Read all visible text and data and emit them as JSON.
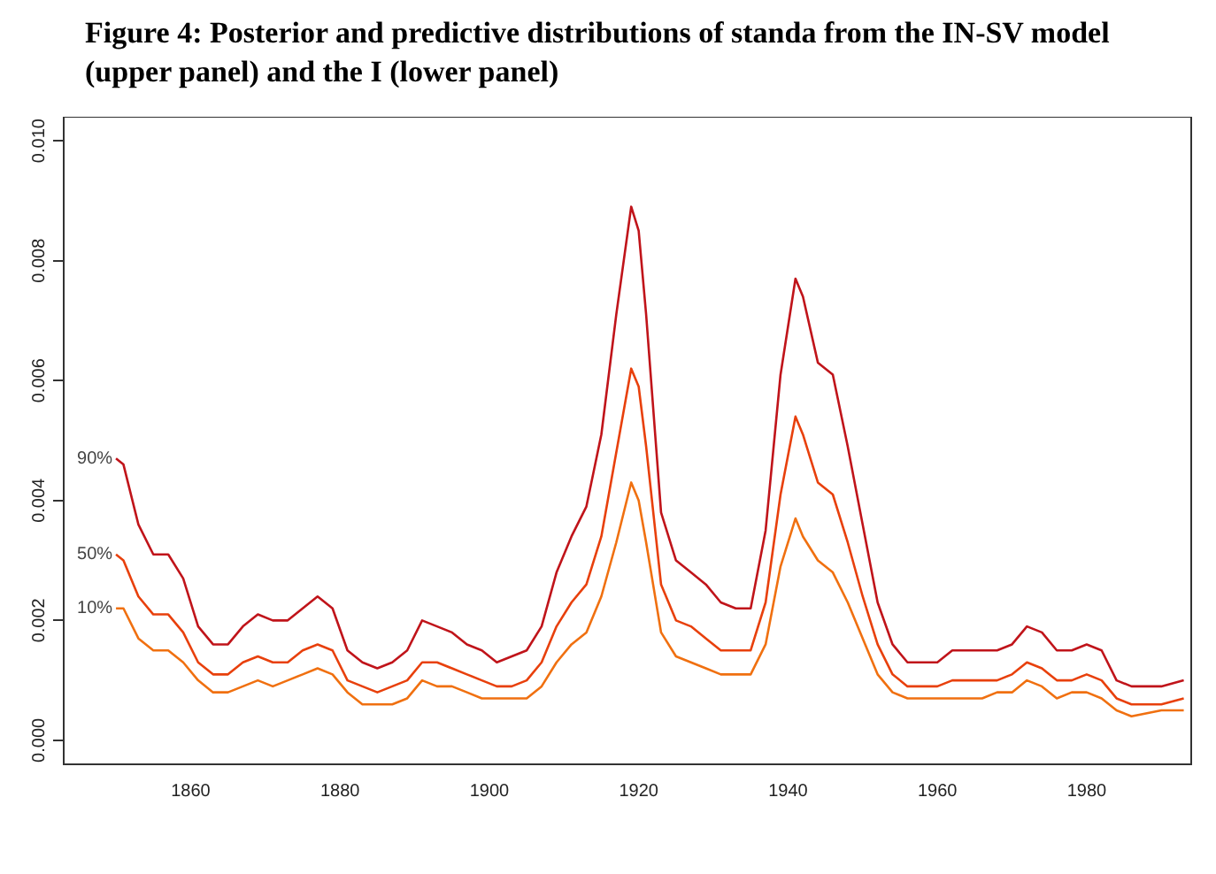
{
  "chart_data": {
    "type": "line",
    "title": "Figure 4: Posterior and predictive distributions of standa from the IN-SV model (upper panel) and the I (lower panel)",
    "x": [
      1850,
      1851,
      1853,
      1855,
      1857,
      1859,
      1861,
      1863,
      1865,
      1867,
      1869,
      1871,
      1873,
      1875,
      1877,
      1879,
      1881,
      1883,
      1885,
      1887,
      1889,
      1891,
      1893,
      1895,
      1897,
      1899,
      1901,
      1903,
      1905,
      1907,
      1909,
      1911,
      1913,
      1915,
      1917,
      1919,
      1920,
      1921,
      1923,
      1925,
      1927,
      1929,
      1931,
      1933,
      1935,
      1937,
      1939,
      1941,
      1942,
      1944,
      1946,
      1948,
      1950,
      1952,
      1954,
      1956,
      1958,
      1960,
      1962,
      1964,
      1966,
      1968,
      1970,
      1972,
      1974,
      1976,
      1978,
      1980,
      1982,
      1984,
      1986,
      1990,
      1993
    ],
    "series": [
      {
        "name": "90%",
        "color": "#c0141a",
        "values": [
          0.0047,
          0.0046,
          0.0036,
          0.0031,
          0.0031,
          0.0027,
          0.0019,
          0.0016,
          0.0016,
          0.0019,
          0.0021,
          0.002,
          0.002,
          0.0022,
          0.0024,
          0.0022,
          0.0015,
          0.0013,
          0.0012,
          0.0013,
          0.0015,
          0.002,
          0.0019,
          0.0018,
          0.0016,
          0.0015,
          0.0013,
          0.0014,
          0.0015,
          0.0019,
          0.0028,
          0.0034,
          0.0039,
          0.0051,
          0.0071,
          0.0089,
          0.0085,
          0.0071,
          0.0038,
          0.003,
          0.0028,
          0.0026,
          0.0023,
          0.0022,
          0.0022,
          0.0035,
          0.0061,
          0.0077,
          0.0074,
          0.0063,
          0.0061,
          0.0049,
          0.0036,
          0.0023,
          0.0016,
          0.0013,
          0.0013,
          0.0013,
          0.0015,
          0.0015,
          0.0015,
          0.0015,
          0.0016,
          0.0019,
          0.0018,
          0.0015,
          0.0015,
          0.0016,
          0.0015,
          0.001,
          0.0009,
          0.0009,
          0.001
        ]
      },
      {
        "name": "50%",
        "color": "#e8400c",
        "values": [
          0.0031,
          0.003,
          0.0024,
          0.0021,
          0.0021,
          0.0018,
          0.0013,
          0.0011,
          0.0011,
          0.0013,
          0.0014,
          0.0013,
          0.0013,
          0.0015,
          0.0016,
          0.0015,
          0.001,
          0.0009,
          0.0008,
          0.0009,
          0.001,
          0.0013,
          0.0013,
          0.0012,
          0.0011,
          0.001,
          0.0009,
          0.0009,
          0.001,
          0.0013,
          0.0019,
          0.0023,
          0.0026,
          0.0034,
          0.0048,
          0.0062,
          0.0059,
          0.0049,
          0.0026,
          0.002,
          0.0019,
          0.0017,
          0.0015,
          0.0015,
          0.0015,
          0.0023,
          0.0041,
          0.0054,
          0.0051,
          0.0043,
          0.0041,
          0.0033,
          0.0024,
          0.0016,
          0.0011,
          0.0009,
          0.0009,
          0.0009,
          0.001,
          0.001,
          0.001,
          0.001,
          0.0011,
          0.0013,
          0.0012,
          0.001,
          0.001,
          0.0011,
          0.001,
          0.0007,
          0.0006,
          0.0006,
          0.0007
        ]
      },
      {
        "name": "10%",
        "color": "#f07010",
        "values": [
          0.0022,
          0.0022,
          0.0017,
          0.0015,
          0.0015,
          0.0013,
          0.001,
          0.0008,
          0.0008,
          0.0009,
          0.001,
          0.0009,
          0.001,
          0.0011,
          0.0012,
          0.0011,
          0.0008,
          0.0006,
          0.0006,
          0.0006,
          0.0007,
          0.001,
          0.0009,
          0.0009,
          0.0008,
          0.0007,
          0.0007,
          0.0007,
          0.0007,
          0.0009,
          0.0013,
          0.0016,
          0.0018,
          0.0024,
          0.0033,
          0.0043,
          0.004,
          0.0033,
          0.0018,
          0.0014,
          0.0013,
          0.0012,
          0.0011,
          0.0011,
          0.0011,
          0.0016,
          0.0029,
          0.0037,
          0.0034,
          0.003,
          0.0028,
          0.0023,
          0.0017,
          0.0011,
          0.0008,
          0.0007,
          0.0007,
          0.0007,
          0.0007,
          0.0007,
          0.0007,
          0.0008,
          0.0008,
          0.001,
          0.0009,
          0.0007,
          0.0008,
          0.0008,
          0.0007,
          0.0005,
          0.0004,
          0.0005,
          0.0005
        ]
      }
    ],
    "xlim": [
      1843,
      1994
    ],
    "xticks": [
      1860,
      1880,
      1900,
      1920,
      1940,
      1960,
      1980
    ],
    "ylim": [
      -0.0004,
      0.0104
    ],
    "yticks": [
      {
        "value": 0,
        "label": "0.000"
      },
      {
        "value": 0.002,
        "label": "0.002"
      },
      {
        "value": 0.004,
        "label": "0.004"
      },
      {
        "value": 0.006,
        "label": "0.006"
      },
      {
        "value": 0.008,
        "label": "0.008"
      },
      {
        "value": 0.01,
        "label": "0.010"
      }
    ],
    "grid": false,
    "legend": false,
    "marker": "none",
    "line_style": "solid"
  }
}
